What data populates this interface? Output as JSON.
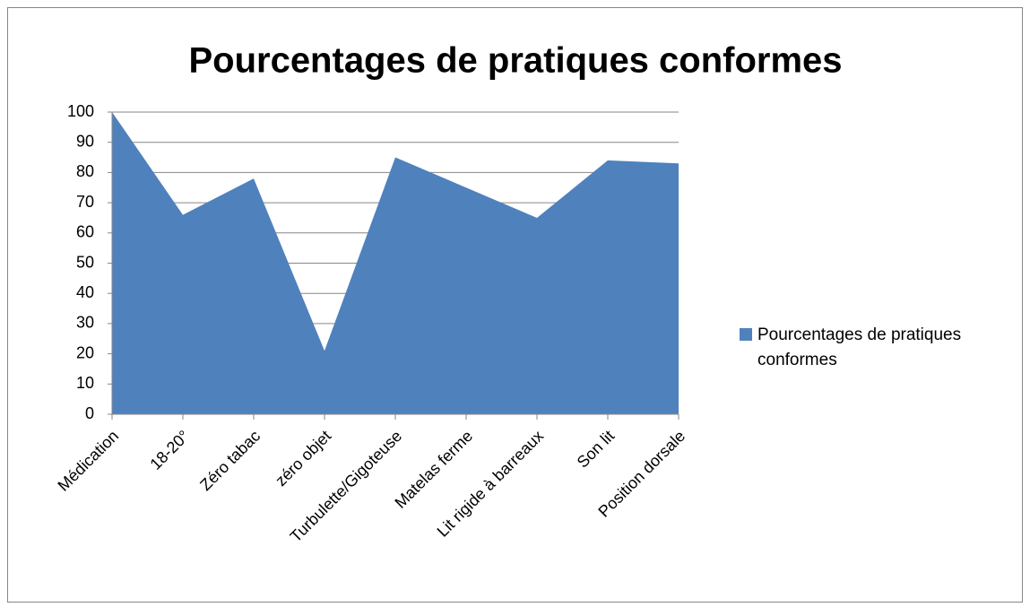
{
  "chart_data": {
    "type": "area",
    "title": "Pourcentages de pratiques conformes",
    "categories": [
      "Médication",
      "18-20°",
      "Zéro tabac",
      "zéro objet",
      "Turbulette/Gigoteuse",
      "Matelas ferme",
      "Lit rigide à barreaux",
      "Son lit",
      "Position dorsale"
    ],
    "series": [
      {
        "name": "Pourcentages de pratiques conformes",
        "color": "#4f81bd",
        "values": [
          100,
          66,
          78,
          21,
          85,
          75,
          65,
          84,
          83
        ]
      }
    ],
    "ylim": [
      0,
      100
    ],
    "yticks": [
      0,
      10,
      20,
      30,
      40,
      50,
      60,
      70,
      80,
      90,
      100
    ],
    "grid": true,
    "legend": "right"
  }
}
